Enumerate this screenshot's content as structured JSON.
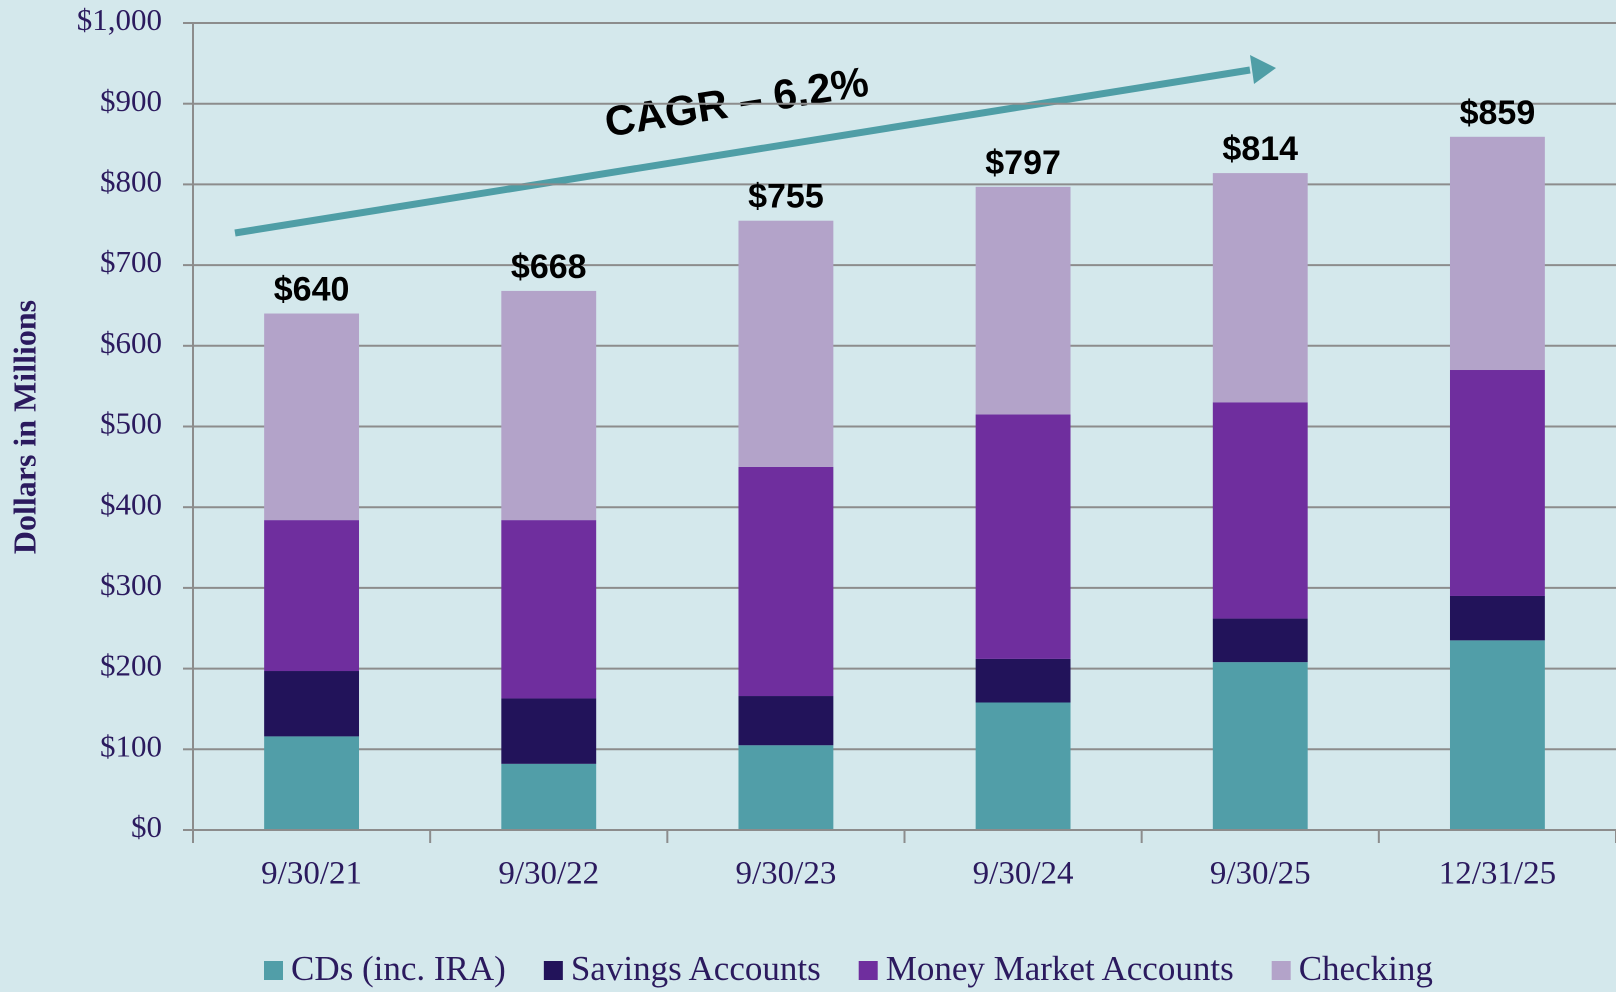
{
  "chart_data": {
    "type": "stacked_bar",
    "y_label": "Dollars in Millions",
    "annotation": "CAGR – 6.2%",
    "categories": [
      "9/30/21",
      "9/30/22",
      "9/30/23",
      "9/30/24",
      "9/30/25",
      "12/31/25"
    ],
    "series": [
      {
        "name": "CDs (inc. IRA)",
        "color": "#519ea8",
        "values": [
          116,
          82,
          105,
          158,
          208,
          235
        ]
      },
      {
        "name": "Savings Accounts",
        "color": "#22135a",
        "values": [
          81,
          81,
          61,
          54,
          54,
          55
        ]
      },
      {
        "name": "Money Market Accounts",
        "color": "#6f2e9e",
        "values": [
          187,
          221,
          284,
          303,
          268,
          280
        ]
      },
      {
        "name": "Checking",
        "color": "#b3a3c9",
        "values": [
          256,
          284,
          305,
          282,
          284,
          289
        ]
      }
    ],
    "totals": {
      "values": [
        640,
        668,
        755,
        797,
        814,
        859
      ],
      "value_labels": [
        "$640",
        "$668",
        "$755",
        "$797",
        "$814",
        "$859"
      ]
    },
    "ylim": [
      0,
      1000
    ],
    "yticks": [
      {
        "value": 0,
        "label": "$0"
      },
      {
        "value": 100,
        "label": "$100"
      },
      {
        "value": 200,
        "label": "$200"
      },
      {
        "value": 300,
        "label": "$300"
      },
      {
        "value": 400,
        "label": "$400"
      },
      {
        "value": 500,
        "label": "$500"
      },
      {
        "value": 600,
        "label": "$600"
      },
      {
        "value": 700,
        "label": "$700"
      },
      {
        "value": 800,
        "label": "$800"
      },
      {
        "value": 900,
        "label": "$900"
      },
      {
        "value": 1000,
        "label": "$1,000"
      }
    ],
    "grid": true
  }
}
